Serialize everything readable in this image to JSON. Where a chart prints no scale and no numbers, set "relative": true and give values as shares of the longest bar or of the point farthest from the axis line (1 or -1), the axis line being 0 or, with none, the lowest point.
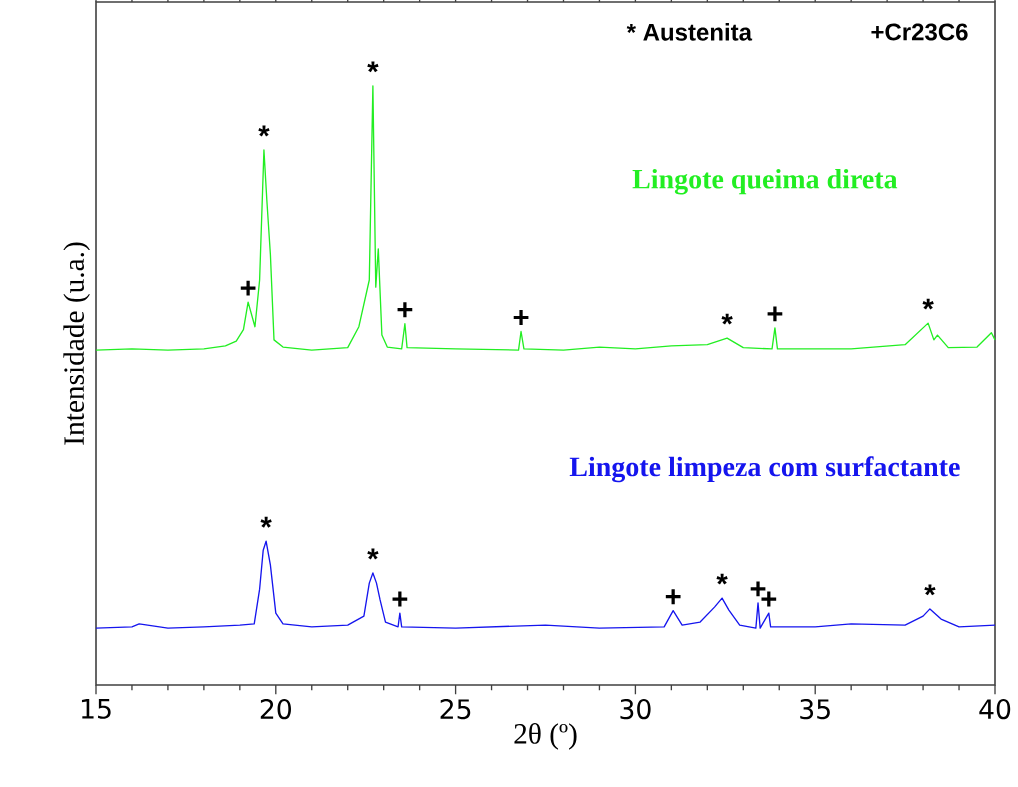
{
  "chart_data": {
    "type": "line",
    "relative": true,
    "xlabel": "2θ (º)",
    "ylabel": "Intensidade (u.a.)",
    "xlim": [
      15,
      40
    ],
    "xticks": [
      15,
      20,
      25,
      30,
      35,
      40
    ],
    "series": [
      {
        "name": "Lingote queima direta",
        "color": "#22ee22",
        "x": [
          15.0,
          16.0,
          17.0,
          18.0,
          18.6,
          18.9,
          19.1,
          19.23,
          19.42,
          19.55,
          19.67,
          19.75,
          19.85,
          19.95,
          20.2,
          21.0,
          22.0,
          22.31,
          22.6,
          22.7,
          22.78,
          22.85,
          22.95,
          23.1,
          23.5,
          23.59,
          23.65,
          25.0,
          26.75,
          26.82,
          26.9,
          28.0,
          29.0,
          30.0,
          31.0,
          32.0,
          32.55,
          33.0,
          33.8,
          33.88,
          33.95,
          36.0,
          37.5,
          38.14,
          38.3,
          38.4,
          38.7,
          39.5,
          39.9,
          40.0
        ],
        "values": [
          0.559,
          0.561,
          0.559,
          0.561,
          0.566,
          0.574,
          0.593,
          0.639,
          0.598,
          0.676,
          0.893,
          0.81,
          0.718,
          0.576,
          0.564,
          0.559,
          0.563,
          0.598,
          0.676,
          1.0,
          0.664,
          0.728,
          0.584,
          0.564,
          0.561,
          0.603,
          0.563,
          0.561,
          0.559,
          0.59,
          0.561,
          0.559,
          0.564,
          0.561,
          0.566,
          0.568,
          0.579,
          0.563,
          0.561,
          0.596,
          0.561,
          0.561,
          0.568,
          0.604,
          0.576,
          0.584,
          0.563,
          0.564,
          0.588,
          0.576
        ]
      },
      {
        "name": "Lingote limpeza com surfactante",
        "color": "#1515ee",
        "x": [
          15.0,
          16.0,
          16.2,
          17.0,
          18.0,
          19.0,
          19.4,
          19.55,
          19.65,
          19.73,
          19.85,
          20.0,
          20.2,
          21.0,
          22.0,
          22.45,
          22.6,
          22.7,
          22.8,
          22.9,
          23.05,
          23.4,
          23.45,
          23.5,
          25.0,
          27.5,
          29.0,
          30.8,
          31.05,
          31.3,
          31.8,
          32.2,
          32.41,
          32.6,
          32.9,
          33.35,
          33.41,
          33.47,
          33.71,
          33.76,
          35.0,
          36.0,
          37.5,
          38.0,
          38.19,
          38.5,
          39.0,
          40.0
        ],
        "values": [
          0.095,
          0.097,
          0.102,
          0.095,
          0.097,
          0.1,
          0.102,
          0.16,
          0.225,
          0.24,
          0.2,
          0.12,
          0.102,
          0.097,
          0.1,
          0.115,
          0.17,
          0.187,
          0.17,
          0.142,
          0.105,
          0.097,
          0.12,
          0.097,
          0.095,
          0.1,
          0.095,
          0.097,
          0.124,
          0.1,
          0.105,
          0.13,
          0.145,
          0.125,
          0.1,
          0.095,
          0.137,
          0.095,
          0.12,
          0.097,
          0.097,
          0.102,
          0.1,
          0.115,
          0.127,
          0.11,
          0.097,
          0.1
        ]
      }
    ],
    "annotations": [
      "* Austenita",
      "+Cr23C6",
      {
        "text": "+",
        "x": 19.23,
        "y": 0.639
      },
      {
        "text": "*",
        "x": 19.67,
        "y": 0.893
      },
      {
        "text": "*",
        "x": 22.7,
        "y": 1.0
      },
      {
        "text": "+",
        "x": 23.59,
        "y": 0.603
      },
      {
        "text": "+",
        "x": 26.82,
        "y": 0.59
      },
      {
        "text": "*",
        "x": 32.55,
        "y": 0.579
      },
      {
        "text": "+",
        "x": 33.88,
        "y": 0.596
      },
      {
        "text": "*",
        "x": 38.14,
        "y": 0.604
      },
      {
        "text": "*",
        "x": 19.73,
        "y": 0.24
      },
      {
        "text": "*",
        "x": 22.7,
        "y": 0.187
      },
      {
        "text": "+",
        "x": 23.45,
        "y": 0.12
      },
      {
        "text": "+",
        "x": 31.05,
        "y": 0.124
      },
      {
        "text": "*",
        "x": 32.41,
        "y": 0.145
      },
      {
        "text": "+",
        "x": 33.41,
        "y": 0.137
      },
      {
        "text": "+",
        "x": 33.71,
        "y": 0.12
      },
      {
        "text": "*",
        "x": 38.19,
        "y": 0.127
      }
    ]
  }
}
